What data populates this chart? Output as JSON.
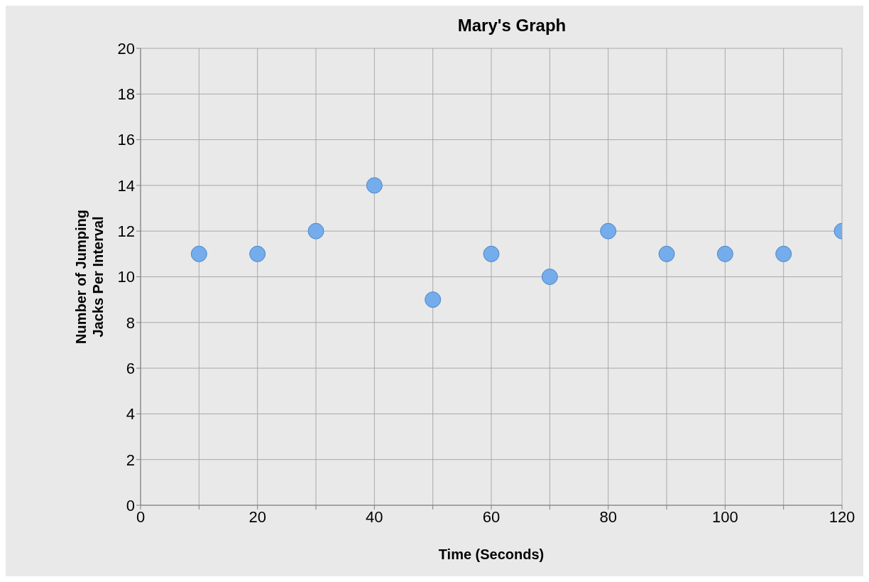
{
  "chart_data": {
    "type": "scatter",
    "title": "Mary's Graph",
    "xlabel": "Time (Seconds)",
    "ylabel": "Number of Jumping Jacks Per Interval",
    "x": [
      10,
      20,
      30,
      40,
      50,
      60,
      70,
      80,
      90,
      100,
      110,
      120
    ],
    "series": [
      {
        "color": "#74acec",
        "values": [
          11,
          11,
          12,
          14,
          9,
          11,
          10,
          12,
          11,
          11,
          11,
          12
        ]
      }
    ],
    "xlim": [
      0,
      120
    ],
    "xticks": [
      0,
      {
        "value": 10,
        "label": null
      },
      20,
      {
        "value": 30,
        "label": null
      },
      40,
      {
        "value": 50,
        "label": null
      },
      60,
      {
        "value": 70,
        "label": null
      },
      80,
      {
        "value": 90,
        "label": null
      },
      100,
      {
        "value": 110,
        "label": null
      },
      120
    ],
    "ylim": [
      0,
      20
    ],
    "yticks": [
      0,
      2,
      4,
      6,
      8,
      10,
      12,
      14,
      16,
      18,
      20
    ],
    "grid": true,
    "marker": "circle",
    "legend": false
  }
}
